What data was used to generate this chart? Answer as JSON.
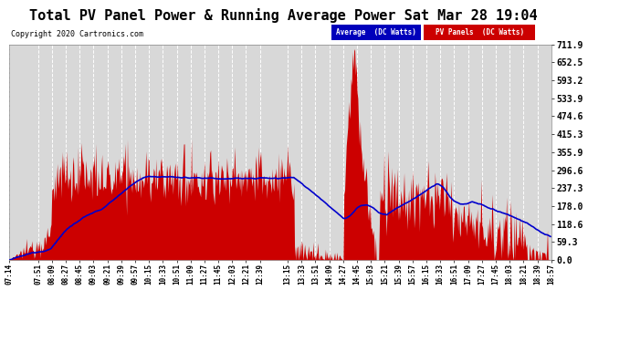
{
  "title": "Total PV Panel Power & Running Average Power Sat Mar 28 19:04",
  "copyright": "Copyright 2020 Cartronics.com",
  "legend_avg": "Average  (DC Watts)",
  "legend_pv": "PV Panels  (DC Watts)",
  "ylabel_right_values": [
    0.0,
    59.3,
    118.6,
    178.0,
    237.3,
    296.6,
    355.9,
    415.3,
    474.6,
    533.9,
    593.2,
    652.5,
    711.9
  ],
  "ymax": 711.9,
  "ymin": 0.0,
  "bg_color": "#ffffff",
  "plot_bg_color": "#d8d8d8",
  "grid_color": "#ffffff",
  "pv_fill_color": "#cc0000",
  "avg_line_color": "#0000cc",
  "title_fontsize": 11,
  "tick_labels": [
    "07:14",
    "07:51",
    "08:09",
    "08:27",
    "08:45",
    "09:03",
    "09:21",
    "09:39",
    "09:57",
    "10:15",
    "10:33",
    "10:51",
    "11:09",
    "11:27",
    "11:45",
    "12:03",
    "12:21",
    "12:39",
    "13:15",
    "13:33",
    "13:51",
    "14:09",
    "14:27",
    "14:45",
    "15:03",
    "15:21",
    "15:39",
    "15:57",
    "16:15",
    "16:33",
    "16:51",
    "17:09",
    "17:27",
    "17:45",
    "18:03",
    "18:21",
    "18:39",
    "18:57"
  ]
}
